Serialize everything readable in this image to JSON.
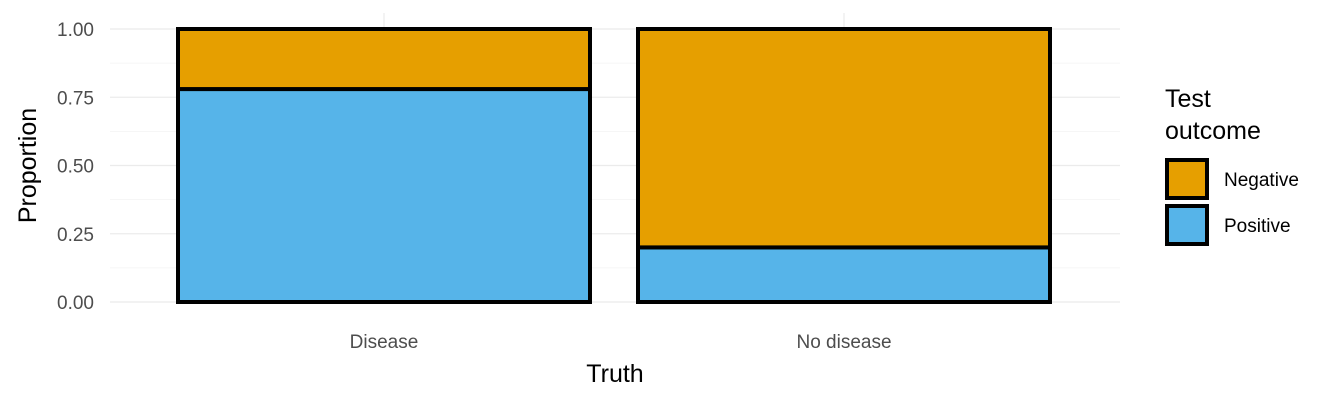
{
  "chart_data": {
    "type": "bar",
    "stacked": true,
    "categories": [
      "Disease",
      "No disease"
    ],
    "series": [
      {
        "name": "Negative",
        "color": "#E69F00",
        "values": [
          0.22,
          0.8
        ]
      },
      {
        "name": "Positive",
        "color": "#56B4E9",
        "values": [
          0.78,
          0.2
        ]
      }
    ],
    "xlabel": "Truth",
    "ylabel": "Proportion",
    "ylim": [
      0,
      1
    ],
    "yticks": [
      0.0,
      0.25,
      0.5,
      0.75,
      1.0
    ],
    "ytick_labels": [
      "0.00",
      "0.25",
      "0.50",
      "0.75",
      "1.00"
    ],
    "grid": true,
    "legend": {
      "title_lines": [
        "Test",
        "outcome"
      ],
      "placement": "right",
      "entries": [
        "Negative",
        "Positive"
      ]
    }
  }
}
